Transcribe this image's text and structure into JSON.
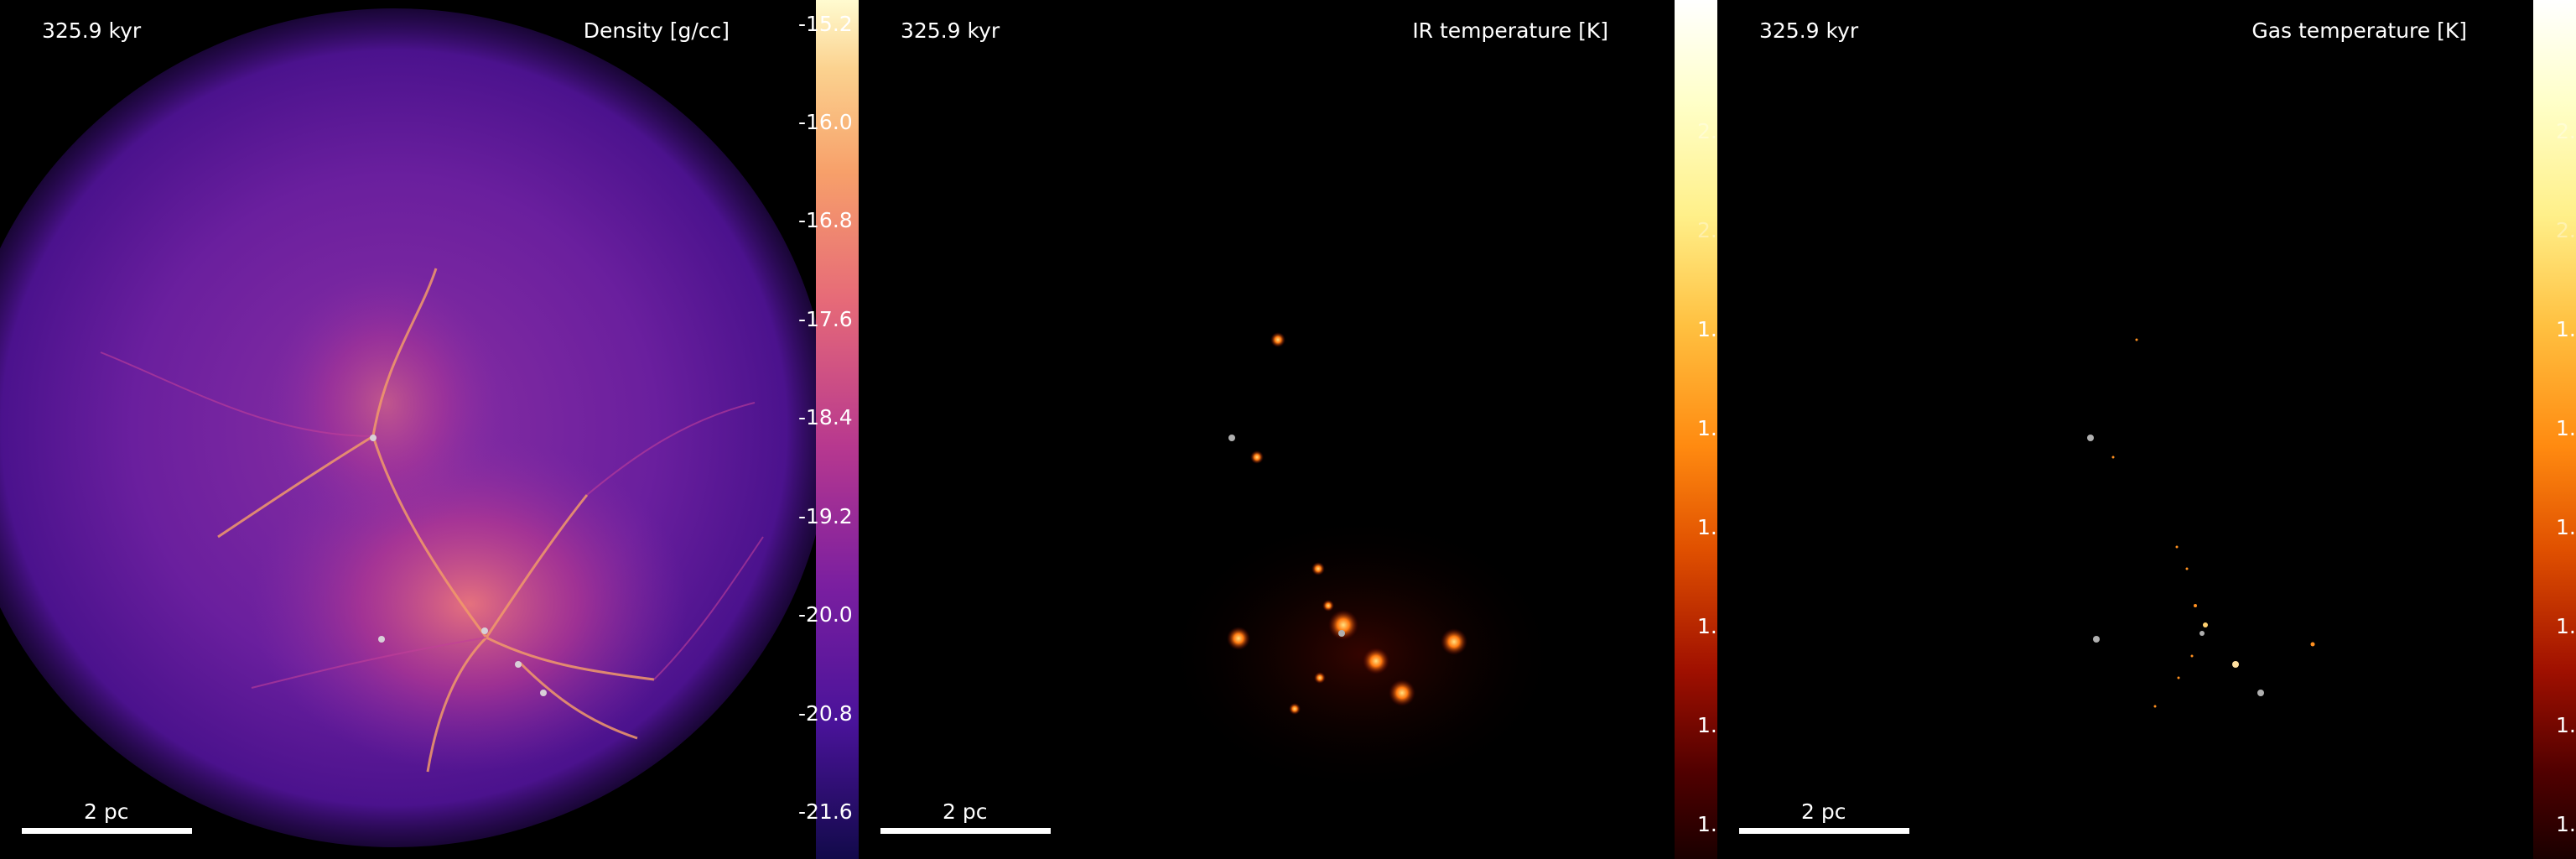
{
  "panels": [
    {
      "time": "325.9 kyr",
      "quantity": "Density [g/cc]",
      "scale_label": "2 pc",
      "colormap": "plasma",
      "ticks": [
        "-15.2",
        "-16.0",
        "-16.8",
        "-17.6",
        "-18.4",
        "-19.2",
        "-20.0",
        "-20.8",
        "-21.6"
      ]
    },
    {
      "time": "325.9 kyr",
      "quantity": "IR temperature [K]",
      "scale_label": "2 pc",
      "colormap": "afmhot",
      "ticks": [
        "2.1",
        "2.0",
        "1.8",
        "1.7",
        "1.5",
        "1.4",
        "1.2",
        "1.1"
      ]
    },
    {
      "time": "325.9 kyr",
      "quantity": "Gas temperature [K]",
      "scale_label": "2 pc",
      "colormap": "afmhot",
      "ticks": [
        "2.1",
        "2.0",
        "1.8",
        "1.7",
        "1.5",
        "1.4",
        "1.2",
        "1.1"
      ]
    }
  ]
}
